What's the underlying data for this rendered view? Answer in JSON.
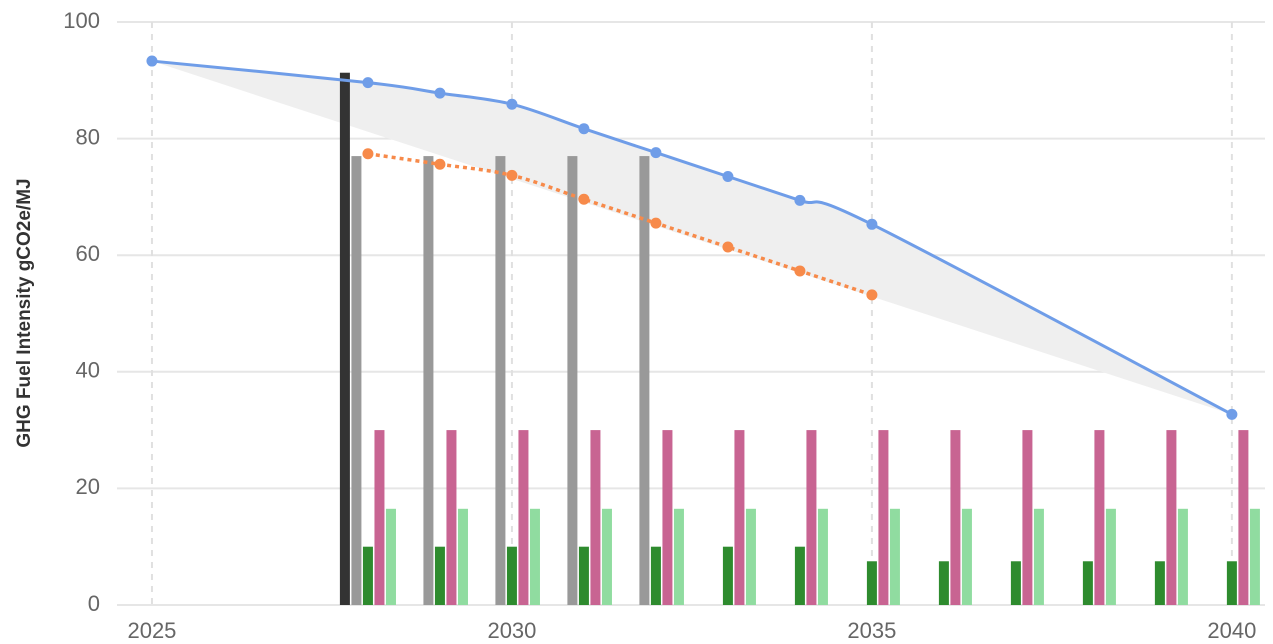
{
  "chart_data": {
    "type": "combo",
    "y_label": "GHG Fuel Intensity gCO2e/MJ",
    "xlim": [
      2024.07,
      2040.46
    ],
    "xticks": [
      2025,
      2030,
      2035,
      2040
    ],
    "ylim": [
      0,
      100
    ],
    "yticks": [
      0,
      20,
      40,
      60,
      80,
      100
    ],
    "grid": true,
    "band": {
      "color": "#efefef",
      "x": [
        2025,
        2040
      ],
      "lower": [
        93.3,
        32.7
      ]
    },
    "lines": [
      {
        "color": "#6f9de8",
        "dashed": false,
        "x": [
          2025,
          2028,
          2029,
          2030,
          2031,
          2032,
          2033,
          2034,
          2035,
          2040
        ],
        "values": [
          93.3,
          89.6,
          87.8,
          85.9,
          81.7,
          77.6,
          73.5,
          69.4,
          65.3,
          32.7
        ]
      },
      {
        "color": "#f78a4a",
        "dashed": true,
        "x": [
          2028,
          2029,
          2030,
          2031,
          2032,
          2033,
          2034,
          2035
        ],
        "values": [
          77.4,
          75.6,
          73.7,
          69.6,
          65.5,
          61.4,
          57.3,
          53.2
        ]
      }
    ],
    "bar_x": [
      2028,
      2029,
      2030,
      2031,
      2032,
      2033,
      2034,
      2035,
      2036,
      2037,
      2038,
      2039,
      2040
    ],
    "bar_series": [
      {
        "color": "#333333",
        "values": [
          91.3,
          null,
          null,
          null,
          null,
          null,
          null,
          null,
          null,
          null,
          null,
          null,
          null
        ]
      },
      {
        "color": "#999999",
        "values": [
          77,
          77,
          77,
          77,
          77,
          null,
          null,
          null,
          null,
          null,
          null,
          null,
          null
        ]
      },
      {
        "color": "#2e8b2e",
        "values": [
          10,
          10,
          10,
          10,
          10,
          10,
          10,
          7.5,
          7.5,
          7.5,
          7.5,
          7.5,
          7.5
        ]
      },
      {
        "color": "#c86492",
        "values": [
          30,
          30,
          30,
          30,
          30,
          30,
          30,
          30,
          30,
          30,
          30,
          30,
          30
        ]
      },
      {
        "color": "#90dca0",
        "values": [
          16.5,
          16.5,
          16.5,
          16.5,
          16.5,
          16.5,
          16.5,
          16.5,
          16.5,
          16.5,
          16.5,
          16.5,
          16.5
        ]
      }
    ]
  }
}
